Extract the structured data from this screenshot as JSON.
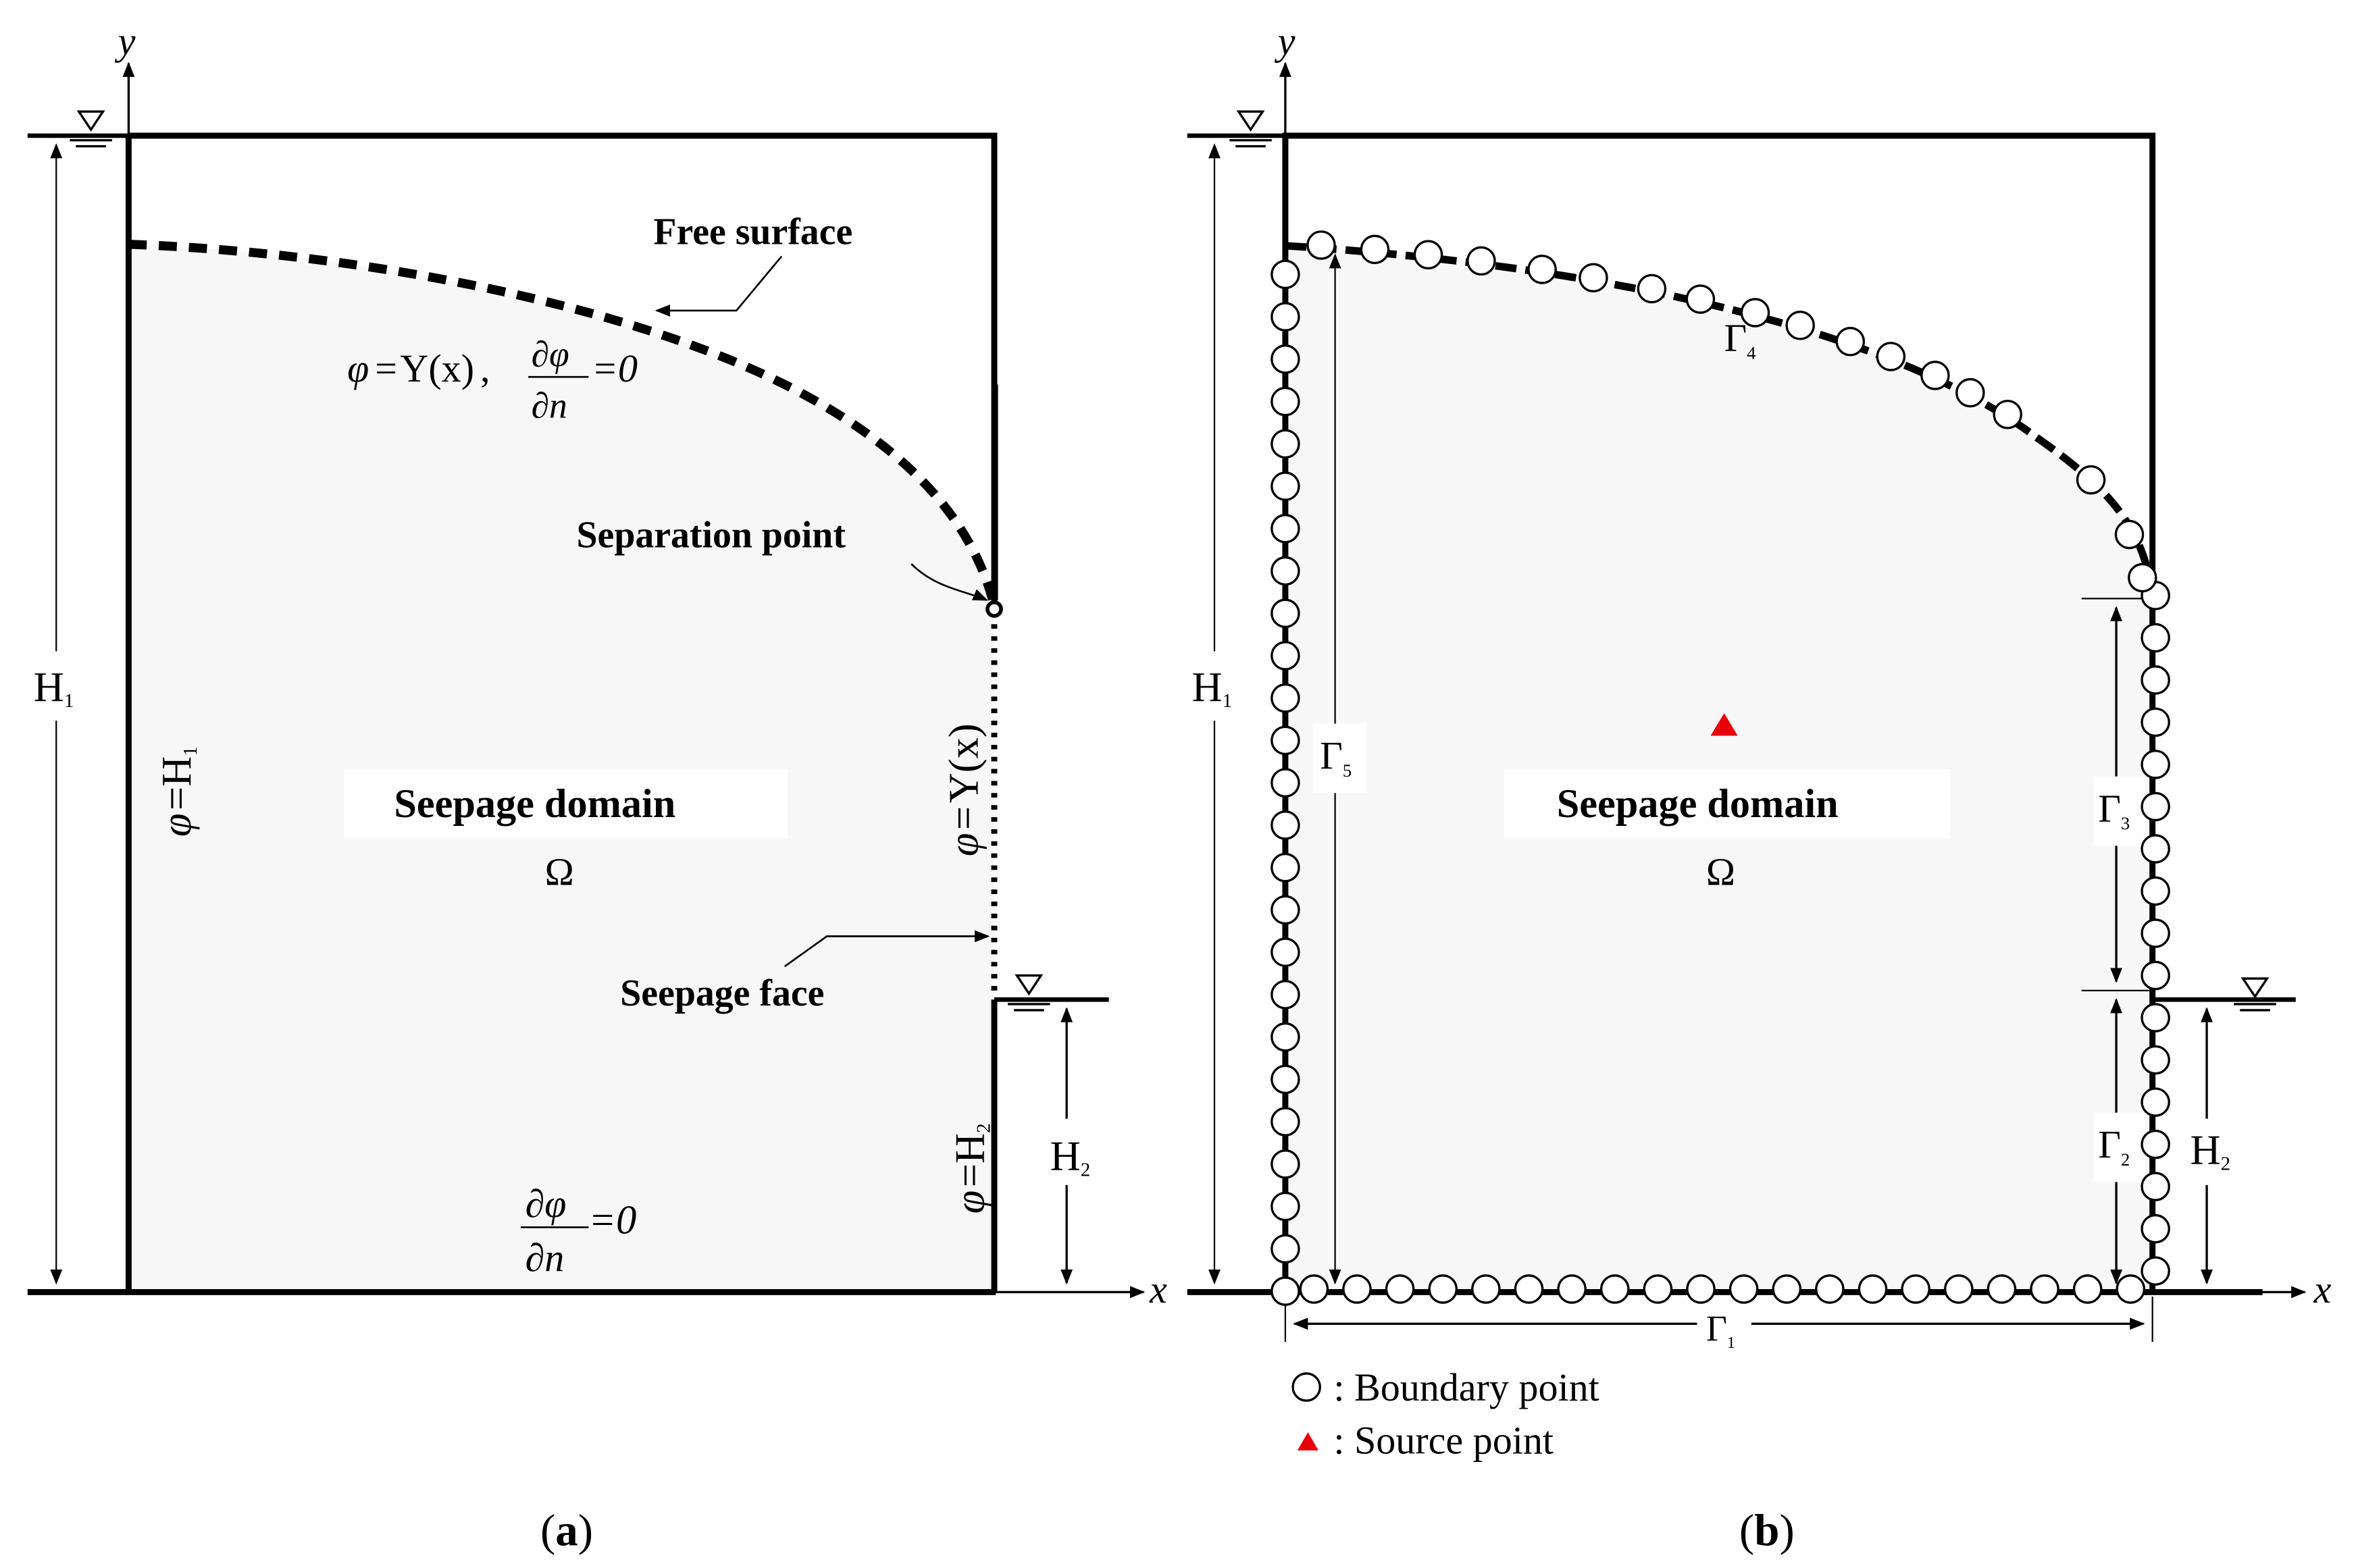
{
  "panel_a": {
    "axis_y": "y",
    "axis_x": "x",
    "free_surface_label": "Free surface",
    "free_surface_bc_lhs": "φ",
    "free_surface_bc_eq": "=",
    "free_surface_bc_y": "Y(x)",
    "free_surface_bc_comma": ",",
    "dphi": "∂φ",
    "dn": "∂n",
    "eq_zero": "=0",
    "separation_point_label": "Separation point",
    "domain_label": "Seepage domain",
    "omega": "Ω",
    "seepage_face_label": "Seepage face",
    "h1": "H",
    "h1_sub": "1",
    "h2": "H",
    "h2_sub": "2",
    "left_bc_phi": "φ",
    "left_bc_eq": "=",
    "left_bc_h": "H",
    "left_bc_sub": "1",
    "seepage_bc_phi": "φ",
    "seepage_bc_eq": "=",
    "seepage_bc_y": "Y(x)",
    "outlet_bc_phi": "φ",
    "outlet_bc_eq": "=",
    "outlet_bc_h": "H",
    "outlet_bc_sub": "2",
    "caption_open": "(",
    "caption_letter": "a",
    "caption_close": ")"
  },
  "panel_b": {
    "axis_y": "y",
    "axis_x": "x",
    "gamma": "Γ",
    "gamma1_sub": "1",
    "gamma2_sub": "2",
    "gamma3_sub": "3",
    "gamma4_sub": "4",
    "gamma5_sub": "5",
    "h1": "H",
    "h1_sub": "1",
    "h2": "H",
    "h2_sub": "2",
    "domain_label": "Seepage domain",
    "omega": "Ω",
    "legend_boundary": ": Boundary point",
    "legend_source": ": Source point",
    "caption_open": "(",
    "caption_letter": "b",
    "caption_close": ")"
  },
  "colors": {
    "line": "#000000",
    "domain_fill": "#f7f7f7",
    "source_point": "#e8000b",
    "label_bg": "#ffffff"
  }
}
